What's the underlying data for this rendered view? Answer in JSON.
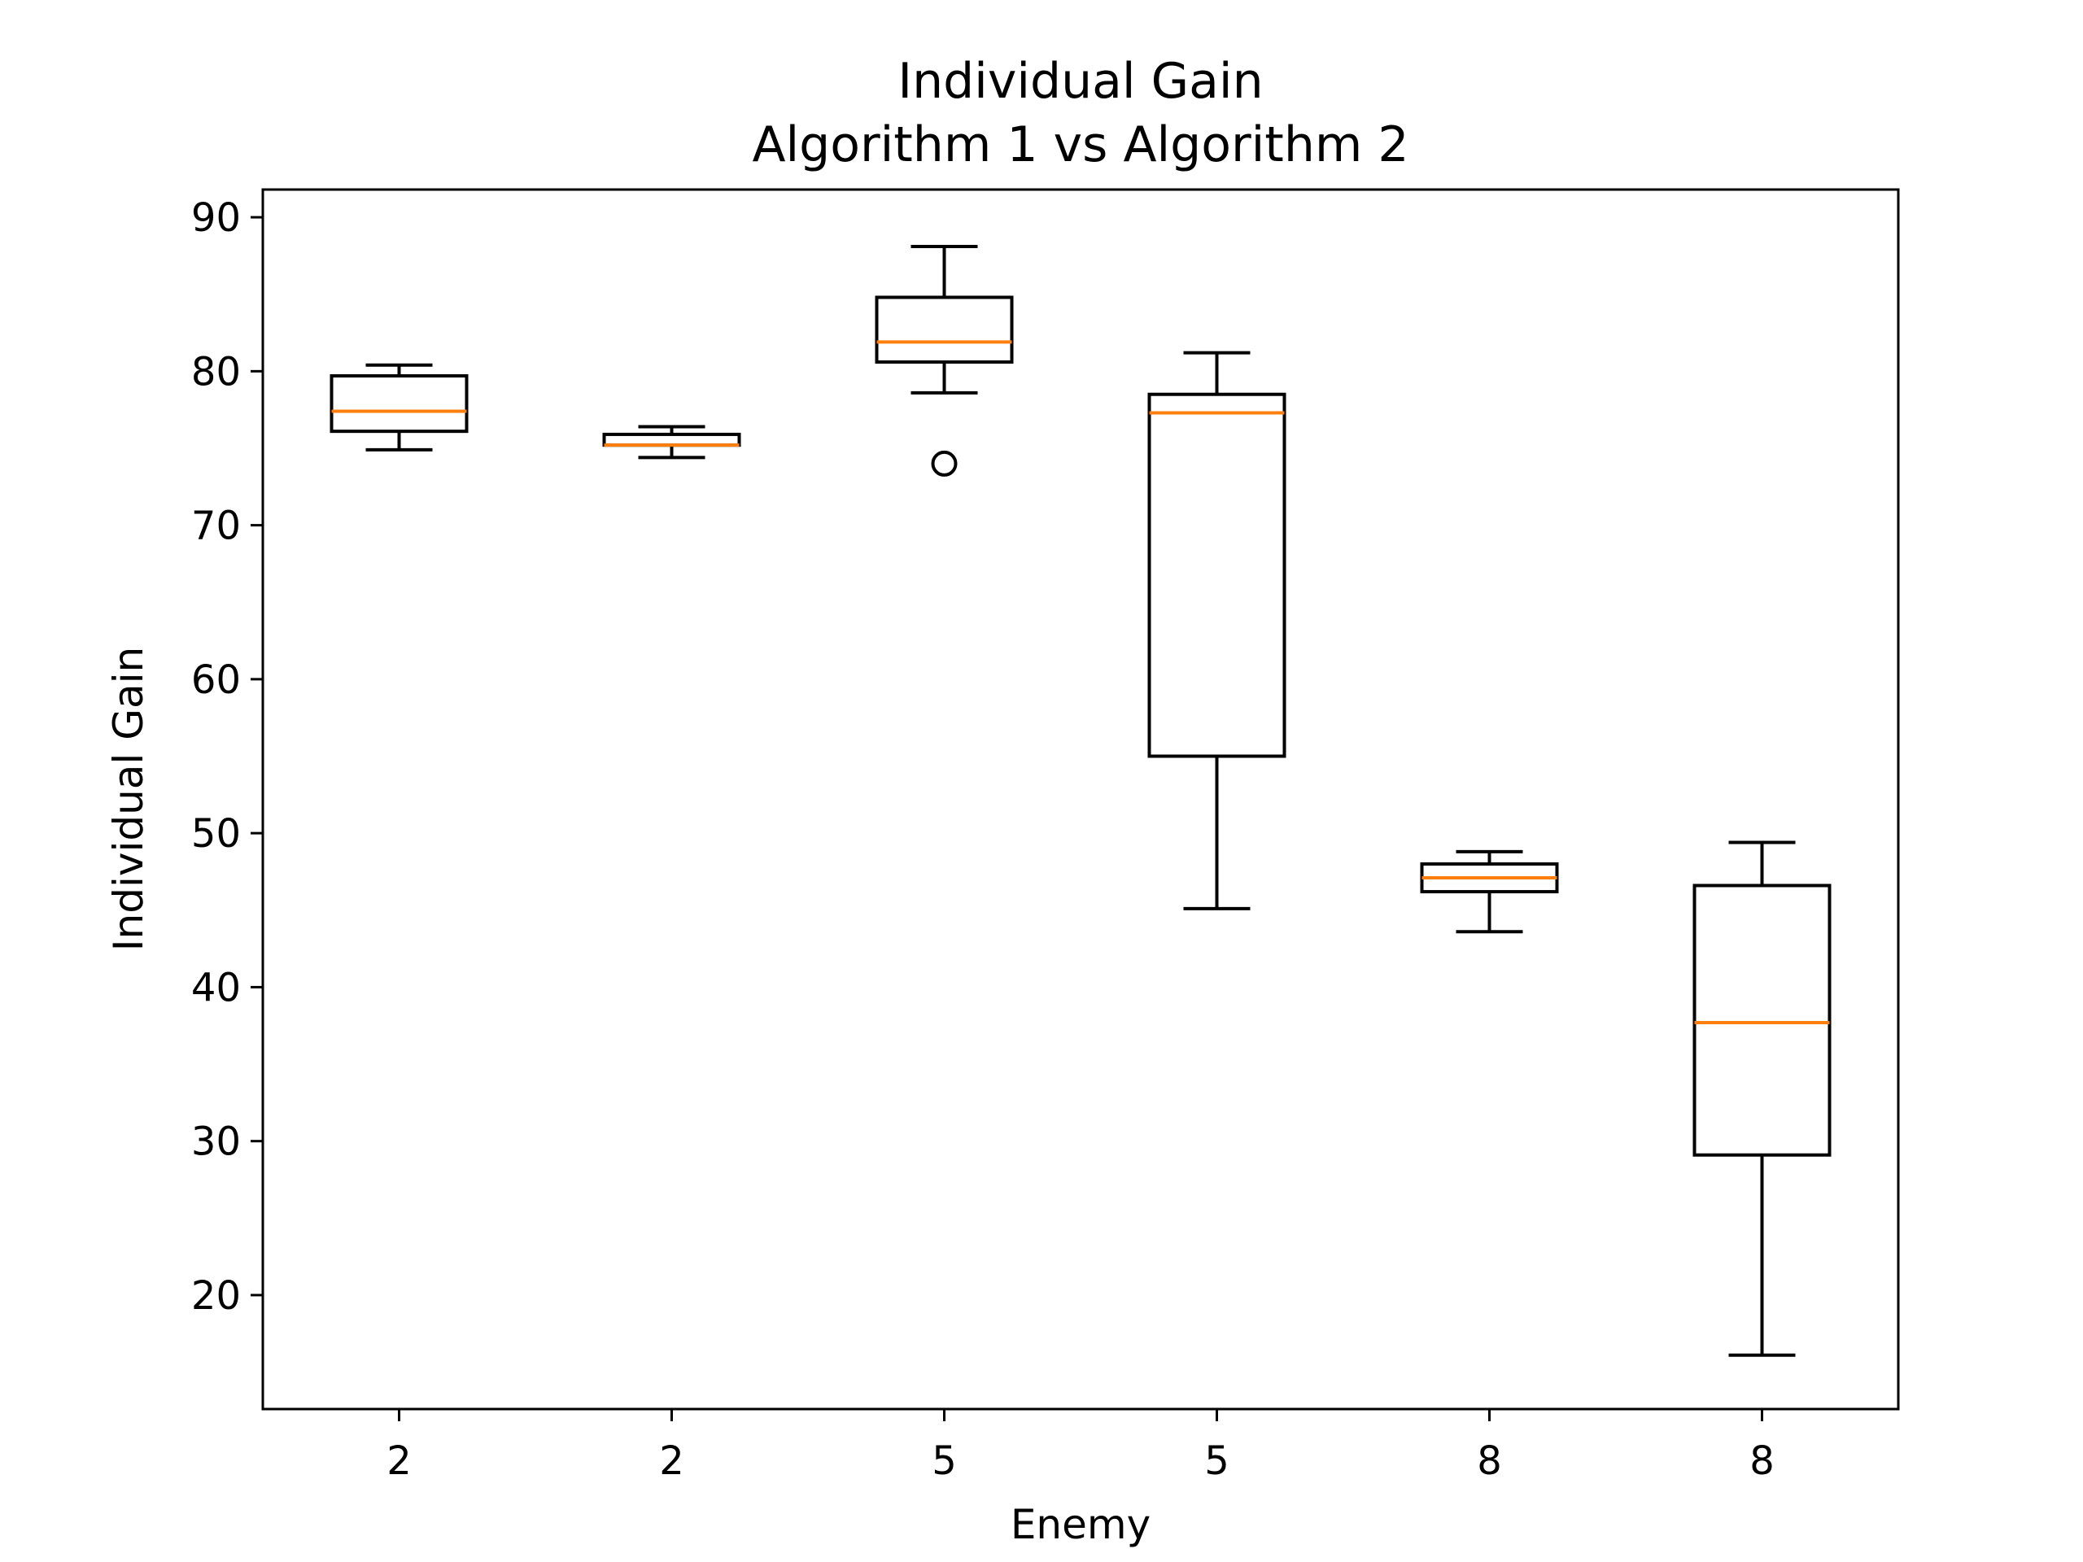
{
  "chart_data": {
    "type": "box",
    "title": "Individual Gain",
    "subtitle": "Algorithm 1 vs Algorithm 2",
    "xlabel": "Enemy",
    "ylabel": "Individual Gain",
    "ylim": [
      12.6,
      91.8
    ],
    "yticks": [
      20,
      30,
      40,
      50,
      60,
      70,
      80,
      90
    ],
    "categories": [
      "2",
      "2",
      "5",
      "5",
      "8",
      "8"
    ],
    "boxes": [
      {
        "label": "2",
        "whisker_low": 74.9,
        "q1": 76.1,
        "median": 77.4,
        "q3": 79.7,
        "whisker_high": 80.4,
        "outliers": []
      },
      {
        "label": "2",
        "whisker_low": 74.4,
        "q1": 75.2,
        "median": 75.2,
        "q3": 75.9,
        "whisker_high": 76.4,
        "outliers": []
      },
      {
        "label": "5",
        "whisker_low": 78.6,
        "q1": 80.6,
        "median": 81.9,
        "q3": 84.8,
        "whisker_high": 88.1,
        "outliers": [
          74.0
        ]
      },
      {
        "label": "5",
        "whisker_low": 45.1,
        "q1": 55.0,
        "median": 77.3,
        "q3": 78.5,
        "whisker_high": 81.2,
        "outliers": []
      },
      {
        "label": "8",
        "whisker_low": 43.6,
        "q1": 46.2,
        "median": 47.1,
        "q3": 48.0,
        "whisker_high": 48.8,
        "outliers": []
      },
      {
        "label": "8",
        "whisker_low": 16.1,
        "q1": 29.1,
        "median": 37.7,
        "q3": 46.6,
        "whisker_high": 49.4,
        "outliers": []
      }
    ],
    "colors": {
      "box": "#000000",
      "median": "#ff7f0e",
      "background": "#ffffff"
    }
  }
}
